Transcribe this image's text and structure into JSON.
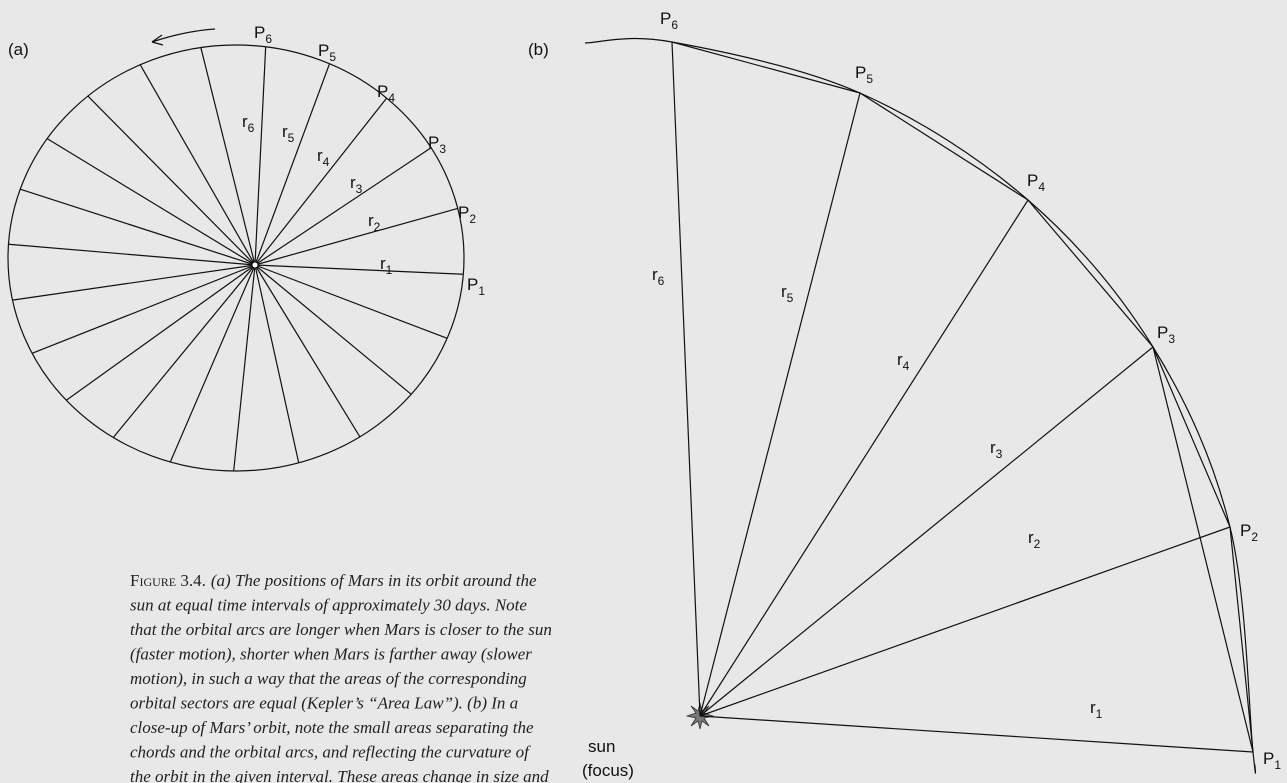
{
  "panel_a": {
    "label": "(a)",
    "points": [
      {
        "base": "P",
        "sub": "1"
      },
      {
        "base": "P",
        "sub": "2"
      },
      {
        "base": "P",
        "sub": "3"
      },
      {
        "base": "P",
        "sub": "4"
      },
      {
        "base": "P",
        "sub": "5"
      },
      {
        "base": "P",
        "sub": "6"
      }
    ],
    "radii": [
      {
        "base": "r",
        "sub": "1"
      },
      {
        "base": "r",
        "sub": "2"
      },
      {
        "base": "r",
        "sub": "3"
      },
      {
        "base": "r",
        "sub": "4"
      },
      {
        "base": "r",
        "sub": "5"
      },
      {
        "base": "r",
        "sub": "6"
      }
    ]
  },
  "panel_b": {
    "label": "(b)",
    "points": [
      {
        "base": "P",
        "sub": "1"
      },
      {
        "base": "P",
        "sub": "2"
      },
      {
        "base": "P",
        "sub": "3"
      },
      {
        "base": "P",
        "sub": "4"
      },
      {
        "base": "P",
        "sub": "5"
      },
      {
        "base": "P",
        "sub": "6"
      }
    ],
    "radii": [
      {
        "base": "r",
        "sub": "1"
      },
      {
        "base": "r",
        "sub": "2"
      },
      {
        "base": "r",
        "sub": "3"
      },
      {
        "base": "r",
        "sub": "4"
      },
      {
        "base": "r",
        "sub": "5"
      },
      {
        "base": "r",
        "sub": "6"
      }
    ],
    "sun": "sun",
    "focus": "(focus)"
  },
  "caption": {
    "label": "Figure 3.4.",
    "lines": [
      "(a) The positions of Mars in its orbit around the",
      "sun at equal time intervals of approximately 30 days. Note",
      "that the orbital arcs are longer when Mars is closer to the sun",
      "(faster motion), shorter when Mars is farther away (slower",
      "motion), in such a way that the areas of the corresponding",
      "orbital sectors are equal (Kepler’s “Area Law”). (b) In a",
      "close-up of Mars’ orbit, note the small areas separating the",
      "chords and the orbital arcs, and reflecting the curvature of",
      "the orbit in the given interval. These areas change in size and"
    ]
  }
}
